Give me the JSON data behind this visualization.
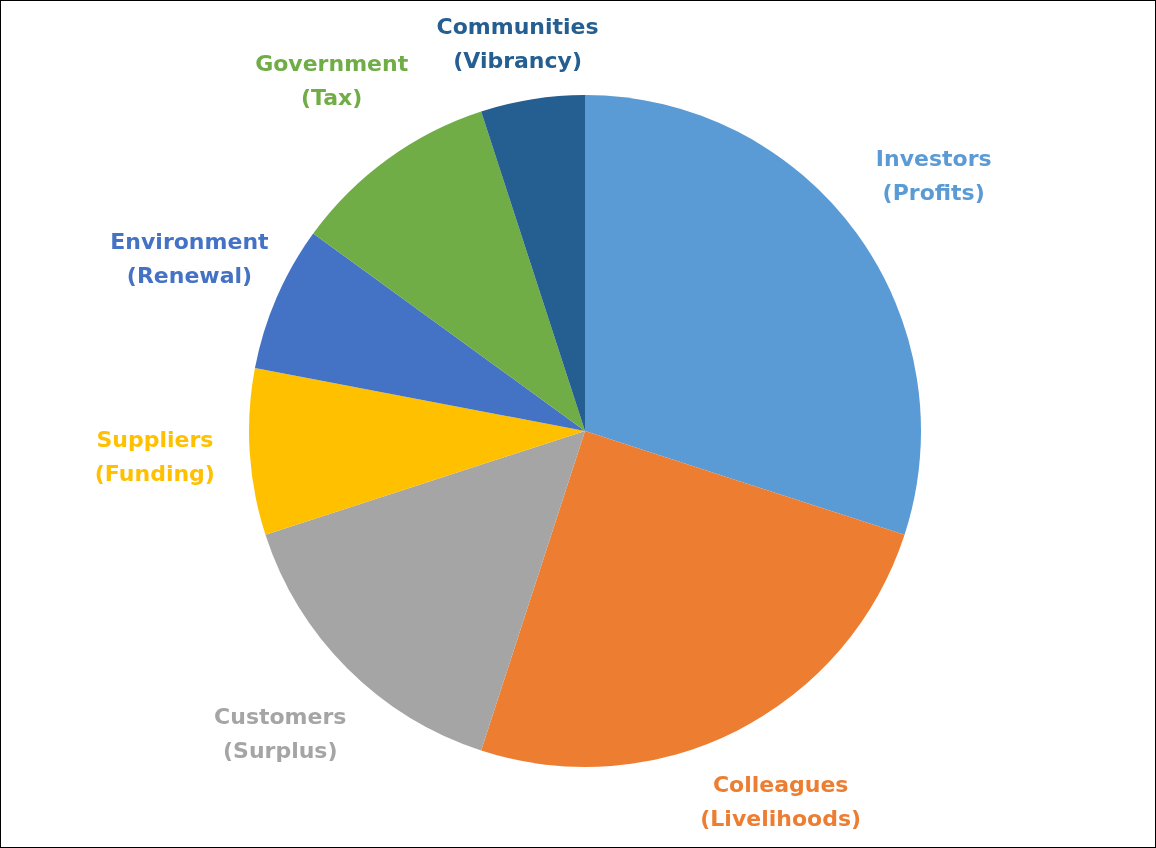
{
  "chart_data": {
    "type": "pie",
    "categories": [
      "Investors (Profits)",
      "Colleagues (Livelihoods)",
      "Customers (Surplus)",
      "Suppliers (Funding)",
      "Environment (Renewal)",
      "Government (Tax)",
      "Communities (Vibrancy)"
    ],
    "values": [
      30,
      25,
      15,
      8,
      7,
      10,
      5
    ],
    "colors": [
      "#5b9bd5",
      "#ed7d31",
      "#a5a5a5",
      "#ffc000",
      "#4472c4",
      "#70ad47",
      "#255e91"
    ],
    "legend": false
  }
}
